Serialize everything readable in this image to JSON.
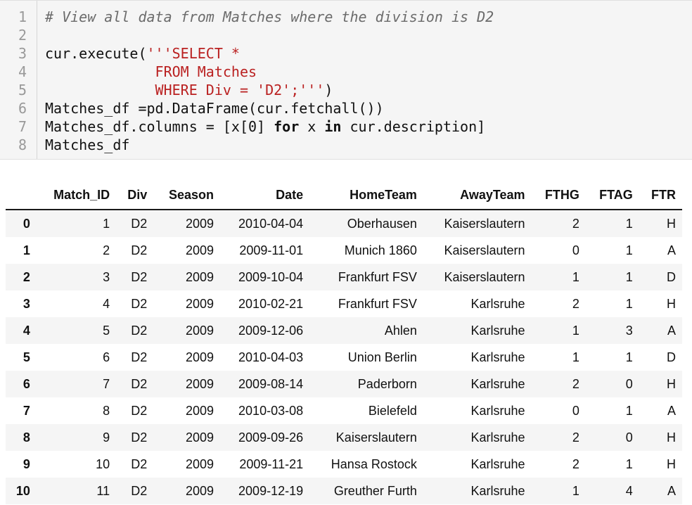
{
  "code_cell": {
    "lines": [
      {
        "num": "1",
        "parts": [
          {
            "t": "# View all data from Matches where the division is D2",
            "c": "comment"
          }
        ]
      },
      {
        "num": "2",
        "parts": []
      },
      {
        "num": "3",
        "parts": [
          {
            "t": "cur.execute(",
            "c": ""
          },
          {
            "t": "'''SELECT *",
            "c": "str"
          }
        ]
      },
      {
        "num": "4",
        "parts": [
          {
            "t": "             ",
            "c": ""
          },
          {
            "t": "FROM Matches",
            "c": "str"
          }
        ]
      },
      {
        "num": "5",
        "parts": [
          {
            "t": "             ",
            "c": ""
          },
          {
            "t": "WHERE Div = 'D2';'''",
            "c": "str"
          },
          {
            "t": ")",
            "c": ""
          }
        ]
      },
      {
        "num": "6",
        "parts": [
          {
            "t": "Matches_df =pd.DataFrame(cur.fetchall())",
            "c": ""
          }
        ]
      },
      {
        "num": "7",
        "parts": [
          {
            "t": "Matches_df.columns = [x[0] ",
            "c": ""
          },
          {
            "t": "for",
            "c": "kw"
          },
          {
            "t": " x ",
            "c": ""
          },
          {
            "t": "in",
            "c": "kw"
          },
          {
            "t": " cur.description]",
            "c": ""
          }
        ]
      },
      {
        "num": "8",
        "parts": [
          {
            "t": "Matches_df",
            "c": ""
          }
        ]
      }
    ]
  },
  "dataframe": {
    "columns": [
      "",
      "Match_ID",
      "Div",
      "Season",
      "Date",
      "HomeTeam",
      "AwayTeam",
      "FTHG",
      "FTAG",
      "FTR"
    ],
    "rows": [
      [
        "0",
        "1",
        "D2",
        "2009",
        "2010-04-04",
        "Oberhausen",
        "Kaiserslautern",
        "2",
        "1",
        "H"
      ],
      [
        "1",
        "2",
        "D2",
        "2009",
        "2009-11-01",
        "Munich 1860",
        "Kaiserslautern",
        "0",
        "1",
        "A"
      ],
      [
        "2",
        "3",
        "D2",
        "2009",
        "2009-10-04",
        "Frankfurt FSV",
        "Kaiserslautern",
        "1",
        "1",
        "D"
      ],
      [
        "3",
        "4",
        "D2",
        "2009",
        "2010-02-21",
        "Frankfurt FSV",
        "Karlsruhe",
        "2",
        "1",
        "H"
      ],
      [
        "4",
        "5",
        "D2",
        "2009",
        "2009-12-06",
        "Ahlen",
        "Karlsruhe",
        "1",
        "3",
        "A"
      ],
      [
        "5",
        "6",
        "D2",
        "2009",
        "2010-04-03",
        "Union Berlin",
        "Karlsruhe",
        "1",
        "1",
        "D"
      ],
      [
        "6",
        "7",
        "D2",
        "2009",
        "2009-08-14",
        "Paderborn",
        "Karlsruhe",
        "2",
        "0",
        "H"
      ],
      [
        "7",
        "8",
        "D2",
        "2009",
        "2010-03-08",
        "Bielefeld",
        "Karlsruhe",
        "0",
        "1",
        "A"
      ],
      [
        "8",
        "9",
        "D2",
        "2009",
        "2009-09-26",
        "Kaiserslautern",
        "Karlsruhe",
        "2",
        "0",
        "H"
      ],
      [
        "9",
        "10",
        "D2",
        "2009",
        "2009-11-21",
        "Hansa Rostock",
        "Karlsruhe",
        "2",
        "1",
        "H"
      ],
      [
        "10",
        "11",
        "D2",
        "2009",
        "2009-12-19",
        "Greuther Furth",
        "Karlsruhe",
        "1",
        "4",
        "A"
      ]
    ]
  }
}
